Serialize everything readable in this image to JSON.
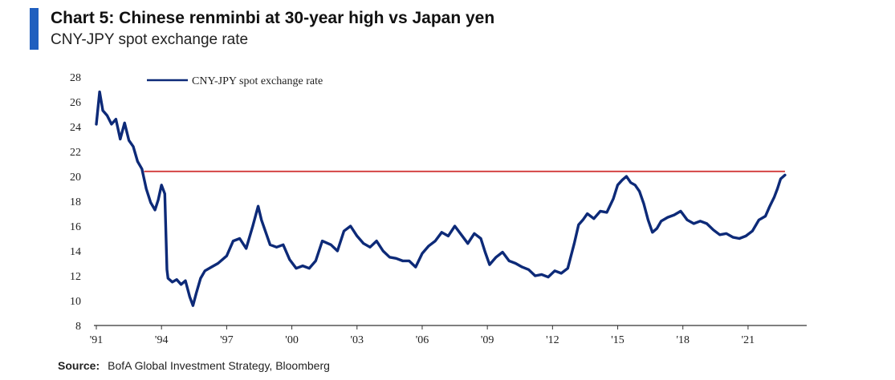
{
  "title": "Chart 5: Chinese renminbi at 30-year high vs Japan yen",
  "subtitle": "CNY-JPY spot exchange rate",
  "source_label": "Source:",
  "source_text": "BofA Global Investment Strategy, Bloomberg",
  "colors": {
    "accent": "#1f5fbf",
    "series": "#0d2a78",
    "reference_line": "#d23a3a"
  },
  "chart_data": {
    "type": "line",
    "title": "Chart 5: Chinese renminbi at 30-year high vs Japan yen",
    "subtitle": "CNY-JPY spot exchange rate",
    "xlabel": "",
    "ylabel": "",
    "xlim": [
      1991,
      2023.7
    ],
    "ylim": [
      8,
      28
    ],
    "x_ticks": [
      1991,
      1994,
      1997,
      2000,
      2003,
      2006,
      2009,
      2012,
      2015,
      2018,
      2021
    ],
    "x_tick_labels": [
      "'91",
      "'94",
      "'97",
      "'00",
      "'03",
      "'06",
      "'09",
      "'12",
      "'15",
      "'18",
      "'21"
    ],
    "y_ticks": [
      8,
      10,
      12,
      14,
      16,
      18,
      20,
      22,
      24,
      26,
      28
    ],
    "grid": false,
    "legend_position": "top-left",
    "reference_line": {
      "y": 20.4,
      "x_range": [
        1993.2,
        2022.7
      ]
    },
    "series": [
      {
        "name": "CNY-JPY spot exchange rate",
        "x": [
          1991.0,
          1991.15,
          1991.3,
          1991.5,
          1991.7,
          1991.9,
          1992.1,
          1992.3,
          1992.5,
          1992.7,
          1992.9,
          1993.1,
          1993.3,
          1993.5,
          1993.7,
          1993.85,
          1994.0,
          1994.15,
          1994.25,
          1994.3,
          1994.5,
          1994.7,
          1994.9,
          1995.1,
          1995.3,
          1995.45,
          1995.6,
          1995.8,
          1996.0,
          1996.3,
          1996.6,
          1997.0,
          1997.3,
          1997.6,
          1997.9,
          1998.2,
          1998.45,
          1998.6,
          1998.8,
          1999.0,
          1999.3,
          1999.6,
          1999.9,
          2000.2,
          2000.5,
          2000.8,
          2001.1,
          2001.4,
          2001.8,
          2002.1,
          2002.4,
          2002.7,
          2003.0,
          2003.3,
          2003.6,
          2003.9,
          2004.2,
          2004.5,
          2004.8,
          2005.1,
          2005.4,
          2005.7,
          2006.0,
          2006.3,
          2006.6,
          2006.9,
          2007.2,
          2007.5,
          2007.8,
          2008.1,
          2008.4,
          2008.7,
          2008.9,
          2009.1,
          2009.4,
          2009.7,
          2010.0,
          2010.3,
          2010.6,
          2010.9,
          2011.2,
          2011.5,
          2011.8,
          2012.1,
          2012.4,
          2012.7,
          2013.0,
          2013.2,
          2013.4,
          2013.6,
          2013.9,
          2014.2,
          2014.5,
          2014.8,
          2015.0,
          2015.2,
          2015.4,
          2015.6,
          2015.8,
          2016.0,
          2016.2,
          2016.4,
          2016.6,
          2016.8,
          2017.0,
          2017.3,
          2017.6,
          2017.9,
          2018.2,
          2018.5,
          2018.8,
          2019.1,
          2019.4,
          2019.7,
          2020.0,
          2020.3,
          2020.6,
          2020.9,
          2021.2,
          2021.5,
          2021.8,
          2022.0,
          2022.2,
          2022.35,
          2022.5,
          2022.7
        ],
        "values": [
          24.2,
          26.8,
          25.3,
          24.9,
          24.2,
          24.6,
          23.0,
          24.3,
          22.9,
          22.4,
          21.2,
          20.6,
          19.0,
          17.9,
          17.3,
          18.1,
          19.3,
          18.6,
          12.5,
          11.8,
          11.5,
          11.7,
          11.3,
          11.6,
          10.3,
          9.6,
          10.6,
          11.8,
          12.4,
          12.7,
          13.0,
          13.6,
          14.8,
          15.0,
          14.2,
          16.0,
          17.6,
          16.5,
          15.5,
          14.5,
          14.3,
          14.5,
          13.3,
          12.6,
          12.8,
          12.6,
          13.2,
          14.8,
          14.5,
          14.0,
          15.6,
          16.0,
          15.2,
          14.6,
          14.3,
          14.8,
          14.0,
          13.5,
          13.4,
          13.2,
          13.2,
          12.7,
          13.8,
          14.4,
          14.8,
          15.5,
          15.2,
          16.0,
          15.3,
          14.6,
          15.4,
          15.0,
          13.9,
          12.9,
          13.5,
          13.9,
          13.2,
          13.0,
          12.7,
          12.5,
          12.0,
          12.1,
          11.9,
          12.4,
          12.2,
          12.6,
          14.6,
          16.1,
          16.5,
          17.0,
          16.6,
          17.2,
          17.1,
          18.2,
          19.3,
          19.7,
          20.0,
          19.5,
          19.3,
          18.8,
          17.8,
          16.5,
          15.5,
          15.8,
          16.4,
          16.7,
          16.9,
          17.2,
          16.5,
          16.2,
          16.4,
          16.2,
          15.7,
          15.3,
          15.4,
          15.1,
          15.0,
          15.2,
          15.6,
          16.5,
          16.8,
          17.6,
          18.3,
          19.0,
          19.8,
          20.1
        ]
      }
    ]
  }
}
